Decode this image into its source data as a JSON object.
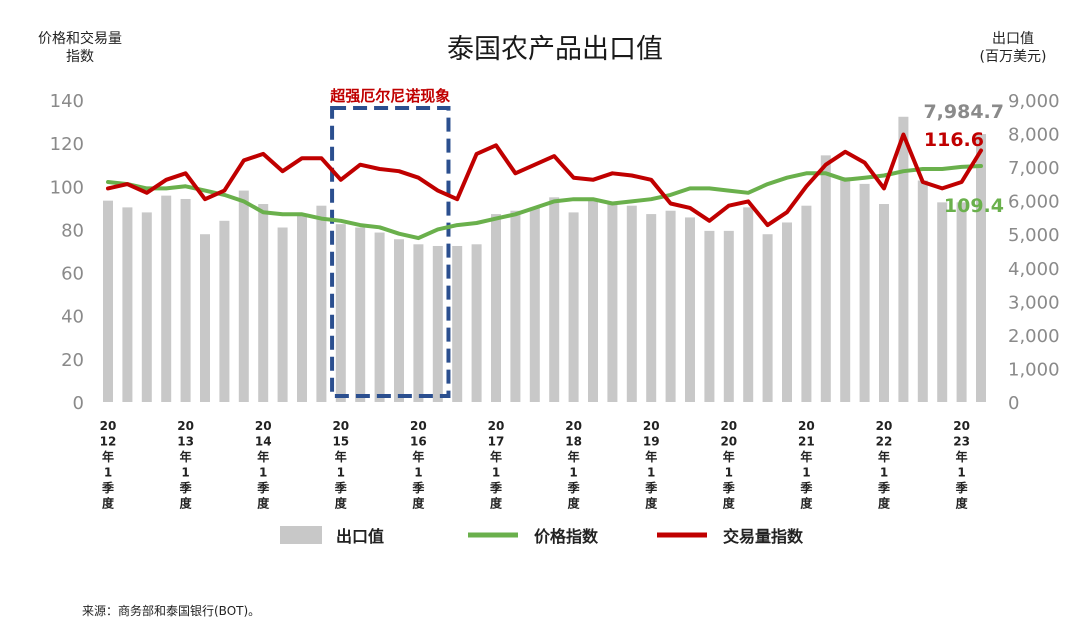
{
  "chart_data": {
    "type": "bar",
    "title": "泰国农产品出口值",
    "left_axis_label": [
      "价格和交易量",
      "指数"
    ],
    "right_axis_label": [
      "出口值",
      "(百万美元)"
    ],
    "left_ylim": [
      0,
      140
    ],
    "right_ylim": [
      0,
      9000
    ],
    "left_ticks": [
      "0",
      "20",
      "40",
      "60",
      "80",
      "100",
      "120",
      "140"
    ],
    "right_ticks": [
      "0",
      "1,000",
      "2,000",
      "3,000",
      "4,000",
      "5,000",
      "6,000",
      "7,000",
      "8,000",
      "9,000"
    ],
    "x_tick_labels": [
      {
        "lines": [
          "20",
          "12",
          "年",
          "1",
          "季",
          "度"
        ],
        "index": 0
      },
      {
        "lines": [
          "20",
          "13",
          "年",
          "1",
          "季",
          "度"
        ],
        "index": 4
      },
      {
        "lines": [
          "20",
          "14",
          "年",
          "1",
          "季",
          "度"
        ],
        "index": 8
      },
      {
        "lines": [
          "20",
          "15",
          "年",
          "1",
          "季",
          "度"
        ],
        "index": 12
      },
      {
        "lines": [
          "20",
          "16",
          "年",
          "1",
          "季",
          "度"
        ],
        "index": 16
      },
      {
        "lines": [
          "20",
          "17",
          "年",
          "1",
          "季",
          "度"
        ],
        "index": 20
      },
      {
        "lines": [
          "20",
          "18",
          "年",
          "1",
          "季",
          "度"
        ],
        "index": 24
      },
      {
        "lines": [
          "20",
          "19",
          "年",
          "1",
          "季",
          "度"
        ],
        "index": 28
      },
      {
        "lines": [
          "20",
          "20",
          "年",
          "1",
          "季",
          "度"
        ],
        "index": 32
      },
      {
        "lines": [
          "20",
          "21",
          "年",
          "1",
          "季",
          "度"
        ],
        "index": 36
      },
      {
        "lines": [
          "20",
          "22",
          "年",
          "1",
          "季",
          "度"
        ],
        "index": 40
      },
      {
        "lines": [
          "20",
          "23",
          "年",
          "1",
          "季",
          "度"
        ],
        "index": 44
      }
    ],
    "series": [
      {
        "name": "出口值",
        "type": "bar",
        "axis": "right",
        "color": "#c8c8c8",
        "values": [
          6000,
          5800,
          5650,
          6150,
          6050,
          5000,
          5400,
          6300,
          5900,
          5200,
          5550,
          5850,
          5300,
          5200,
          5050,
          4850,
          4700,
          4650,
          4650,
          4700,
          5600,
          5700,
          5800,
          6100,
          5650,
          6050,
          5950,
          5850,
          5600,
          5700,
          5500,
          5100,
          5100,
          5800,
          5000,
          5350,
          5850,
          7350,
          6700,
          6500,
          5900,
          8500,
          6600,
          5950,
          5950,
          7984.7
        ]
      },
      {
        "name": "价格指数",
        "type": "line",
        "axis": "left",
        "color": "#6ab04c",
        "values": [
          102,
          101,
          99,
          99,
          100,
          98,
          96,
          93,
          88,
          87,
          87,
          85,
          84,
          82,
          81,
          78,
          76,
          80,
          82,
          83,
          85,
          87,
          90,
          93,
          94,
          94,
          92,
          93,
          94,
          96,
          99,
          99,
          98,
          97,
          101,
          104,
          106,
          106,
          103,
          104,
          105,
          107,
          108,
          108,
          109,
          109.4
        ]
      },
      {
        "name": "交易量指数",
        "type": "line",
        "axis": "left",
        "color": "#c00000",
        "values": [
          99,
          101,
          97,
          103,
          106,
          94,
          98,
          112,
          115,
          107,
          113,
          113,
          103,
          110,
          108,
          107,
          104,
          98,
          94,
          115,
          119,
          106,
          110,
          114,
          104,
          103,
          106,
          105,
          103,
          92,
          90,
          84,
          91,
          93,
          82,
          88,
          100,
          110,
          116,
          111,
          99,
          124,
          102,
          99,
          102,
          116.6
        ]
      }
    ],
    "annotations": {
      "el_nino_label": "超强厄尔尼诺现象",
      "el_nino_range": [
        12,
        17
      ],
      "last_bar_label": "7,984.7",
      "last_volume_label": "116.6",
      "last_price_label": "109.4"
    },
    "legend_position": "bottom",
    "grid": false
  },
  "legend": [
    {
      "label": "出口值",
      "kind": "bar",
      "color": "#c8c8c8"
    },
    {
      "label": "价格指数",
      "kind": "line",
      "color": "#6ab04c"
    },
    {
      "label": "交易量指数",
      "kind": "line",
      "color": "#c00000"
    }
  ],
  "source_note": "来源：商务部和泰国银行(BOT)。"
}
